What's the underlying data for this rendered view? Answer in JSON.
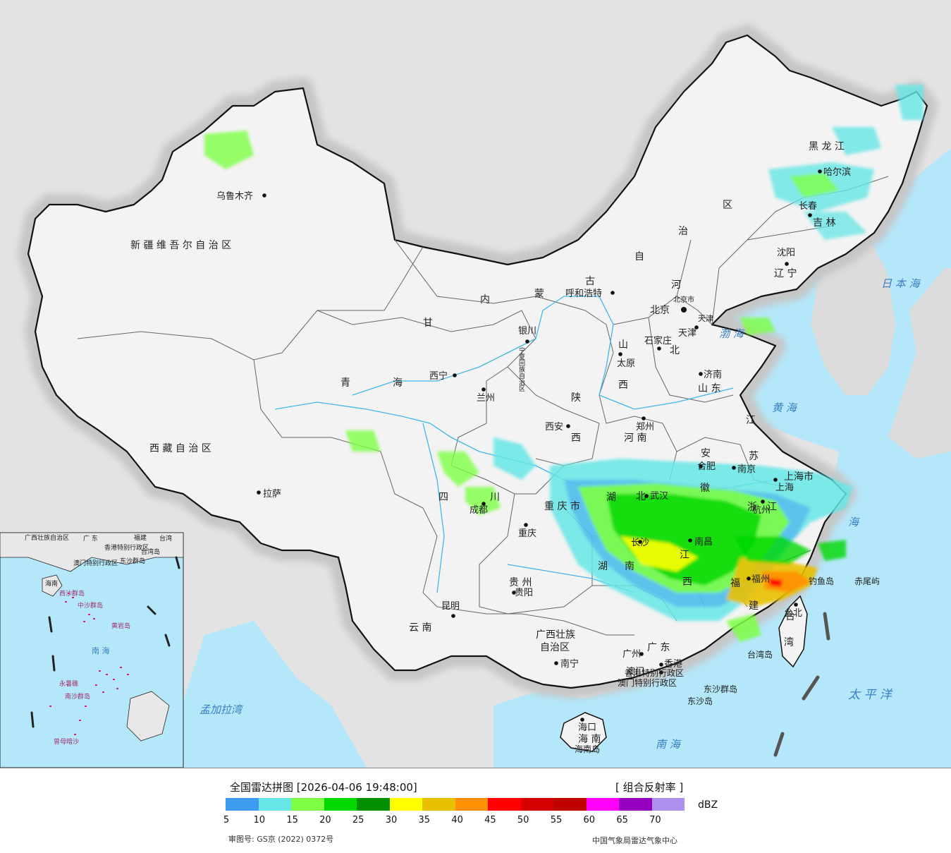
{
  "legend": {
    "title": "全国雷达拼图 [2026-04-06 19:48:00]",
    "product": "[ 组合反射率 ]",
    "unit": "dBZ",
    "colors": [
      "#3d9cf0",
      "#66e6e6",
      "#7dff46",
      "#00d800",
      "#009000",
      "#ffff00",
      "#e8c000",
      "#ff9000",
      "#ff0000",
      "#d60000",
      "#c00000",
      "#ff00ff",
      "#9800c0",
      "#b090ee"
    ],
    "ticks": [
      "5",
      "10",
      "15",
      "20",
      "25",
      "30",
      "35",
      "40",
      "45",
      "50",
      "55",
      "60",
      "65",
      "70"
    ],
    "approval": "审图号: GS京 (2022) 0372号",
    "agency": "中国气象局雷达气象中心"
  },
  "regions": {
    "xinjiang": "新 疆 维 吾 尔 自 治 区",
    "tibet": "西 藏 自 治 区",
    "qinghai_a": "青",
    "qinghai_b": "海",
    "gansu": "甘",
    "inner_mongolia": [
      "内",
      "蒙",
      "古",
      "自",
      "治",
      "区"
    ],
    "heilongjiang": "黑 龙 江",
    "jilin": "吉 林",
    "liaoning": "辽 宁",
    "hebei_a": "河",
    "hebei_b": "北",
    "shanxi_a": "山",
    "shanxi_b": "西",
    "shaanxi_a": "陕",
    "shaanxi_b": "西",
    "henan": "河 南",
    "shandong": "山 东",
    "jiangsu_a": "江",
    "jiangsu_b": "苏",
    "anhui_a": "安",
    "anhui_b": "徽",
    "hubei_a": "湖",
    "hubei_b": "北",
    "hunan_a": "湖",
    "hunan_b": "南",
    "jiangxi_a": "江",
    "jiangxi_b": "西",
    "zhejiang_a": "浙",
    "zhejiang_b": "江",
    "fujian_a": "福",
    "fujian_b": "建",
    "sichuan_a": "四",
    "sichuan_b": "川",
    "chongqing": "重 庆 市",
    "guizhou": "贵 州",
    "yunnan": "云 南",
    "guangxi_a": "广西壮族",
    "guangxi_b": "自治区",
    "guangdong": "广 东",
    "hainan": "海 南",
    "taiwan_a": "台",
    "taiwan_b": "湾",
    "shanghai": "上海市",
    "tianjin": "天津",
    "beijing_city": "北京市",
    "ningxia": "宁夏回族自治区",
    "hongkong": "香港特别行政区",
    "macau": "澳门特别行政区"
  },
  "cities": {
    "urumqi": "乌鲁木齐",
    "lhasa": "拉萨",
    "xining": "西宁",
    "lanzhou": "兰州",
    "yinchuan": "银川",
    "hohhot": "呼和浩特",
    "beijing": "北京",
    "tianjin": "天津",
    "shijiazhuang": "石家庄",
    "taiyuan": "太原",
    "jinan": "济南",
    "zhengzhou": "郑州",
    "xian": "西安",
    "chengdu": "成都",
    "chongqing": "重庆",
    "guiyang": "贵阳",
    "kunming": "昆明",
    "nanning": "南宁",
    "guangzhou": "广州",
    "hongkong": "香港",
    "macau": "澳门",
    "haikou": "海口",
    "changsha": "长沙",
    "wuhan": "武汉",
    "nanchang": "南昌",
    "hefei": "合肥",
    "nanjing": "南京",
    "shanghai": "上海",
    "hangzhou": "杭州",
    "fuzhou": "福州",
    "taipei": "台北",
    "harbin": "哈尔滨",
    "changchun": "长春",
    "shenyang": "沈阳"
  },
  "seas": {
    "japan_sea": "日 本 海",
    "bohai": "渤 海",
    "yellow_sea": "黄 海",
    "east_sea": "海",
    "pacific": "太 平 洋",
    "south_sea": "南 海",
    "bay_bengal": "孟加拉湾"
  },
  "islands": {
    "diaoyu": "钓鱼岛",
    "chiwei": "赤尾屿",
    "taiwan_island": "台湾岛",
    "dongsha_islands": "东沙群岛",
    "dongsha_island": "东沙岛",
    "hainan_island": "海南岛"
  },
  "inset": {
    "guangxi": "广西壮族自治区",
    "guangdong": "广 东",
    "fujian": "福建",
    "taiwan": "台湾",
    "hongkong": "香港特别行政区",
    "macau": "澳门特别行政区",
    "taiwan_island": "台湾岛",
    "dongsha": "东沙群岛",
    "hainan": "海南",
    "xisha": "西沙群岛",
    "zhongsha": "中沙群岛",
    "huangyan": "黄岩岛",
    "south_sea": "南 海",
    "yongshu": "永暑礁",
    "nansha": "南沙群岛",
    "zengmu": "曾母暗沙"
  }
}
